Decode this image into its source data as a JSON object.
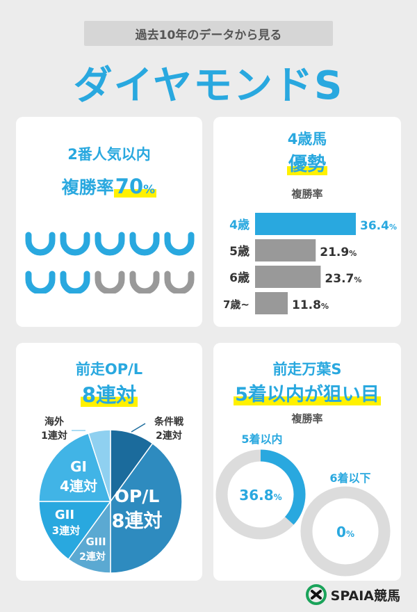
{
  "subtitle": "過去10年のデータから見る",
  "title": "ダイヤモンドS",
  "card1": {
    "line1": "2番人気以内",
    "line2_prefix": "複勝率",
    "line2_value": "70",
    "line2_unit": "%",
    "horseshoes": {
      "total": 10,
      "highlighted": 7,
      "icon": "horseshoe-icon"
    }
  },
  "card2": {
    "line1": "4歳馬",
    "line2": "優勢",
    "metric": "複勝率",
    "chart_data": {
      "type": "bar",
      "orientation": "horizontal",
      "categories": [
        "4歳",
        "5歳",
        "6歳",
        "7歳~"
      ],
      "values": [
        36.4,
        21.9,
        23.7,
        11.8
      ],
      "value_labels": [
        "36.4",
        "21.9",
        "23.7",
        "11.8"
      ],
      "unit": "%",
      "colors": [
        "#29a8df",
        "#999999",
        "#999999",
        "#999999"
      ]
    }
  },
  "card3": {
    "line1": "前走OP/L",
    "line2": "8連対",
    "chart_data": {
      "type": "pie",
      "slices": [
        {
          "label": "条件戦",
          "value_label": "2連対",
          "value": 2,
          "color": "#1b6b9c"
        },
        {
          "label": "OP/L",
          "value_label": "8連対",
          "value": 8,
          "color": "#2e8bbf"
        },
        {
          "label": "GIII",
          "value_label": "2連対",
          "value": 2,
          "color": "#5ba9d2"
        },
        {
          "label": "GII",
          "value_label": "3連対",
          "value": 3,
          "color": "#29a8df"
        },
        {
          "label": "GI",
          "value_label": "4連対",
          "value": 4,
          "color": "#41b4e6"
        },
        {
          "label": "海外",
          "value_label": "1連対",
          "value": 1,
          "color": "#8fd0f0"
        }
      ]
    }
  },
  "card4": {
    "line1": "前走万葉S",
    "line2": "5着以内が狙い目",
    "metric": "複勝率",
    "chart_data": {
      "type": "pie",
      "series": [
        {
          "name": "5着以内",
          "value": 36.8,
          "value_label": "36.8",
          "unit": "%",
          "color": "#29a8df"
        },
        {
          "name": "6着以下",
          "value": 0,
          "value_label": "0",
          "unit": "%",
          "color": "#29a8df"
        }
      ]
    }
  },
  "logo": {
    "text": "SPAIA競馬",
    "icon": "spaia-logo-icon"
  }
}
